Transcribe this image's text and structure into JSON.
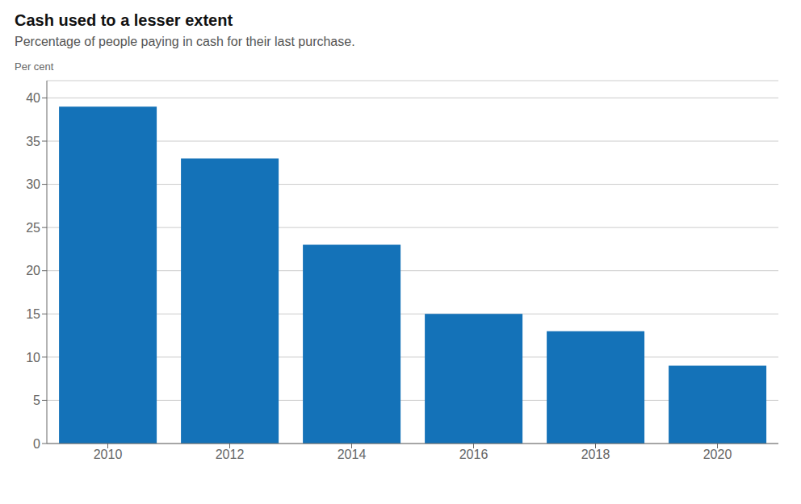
{
  "chart_data": {
    "type": "bar",
    "title": "Cash used to a lesser extent",
    "subtitle": "Percentage of people paying in cash for their last purchase.",
    "ylabel": "Per cent",
    "categories": [
      "2010",
      "2012",
      "2014",
      "2016",
      "2018",
      "2020"
    ],
    "values": [
      39,
      33,
      23,
      15,
      13,
      9
    ],
    "color": "#1472b8",
    "ylim": [
      0,
      42
    ],
    "yticks": [
      0,
      5,
      10,
      15,
      20,
      25,
      30,
      35,
      40
    ],
    "grid": true
  }
}
